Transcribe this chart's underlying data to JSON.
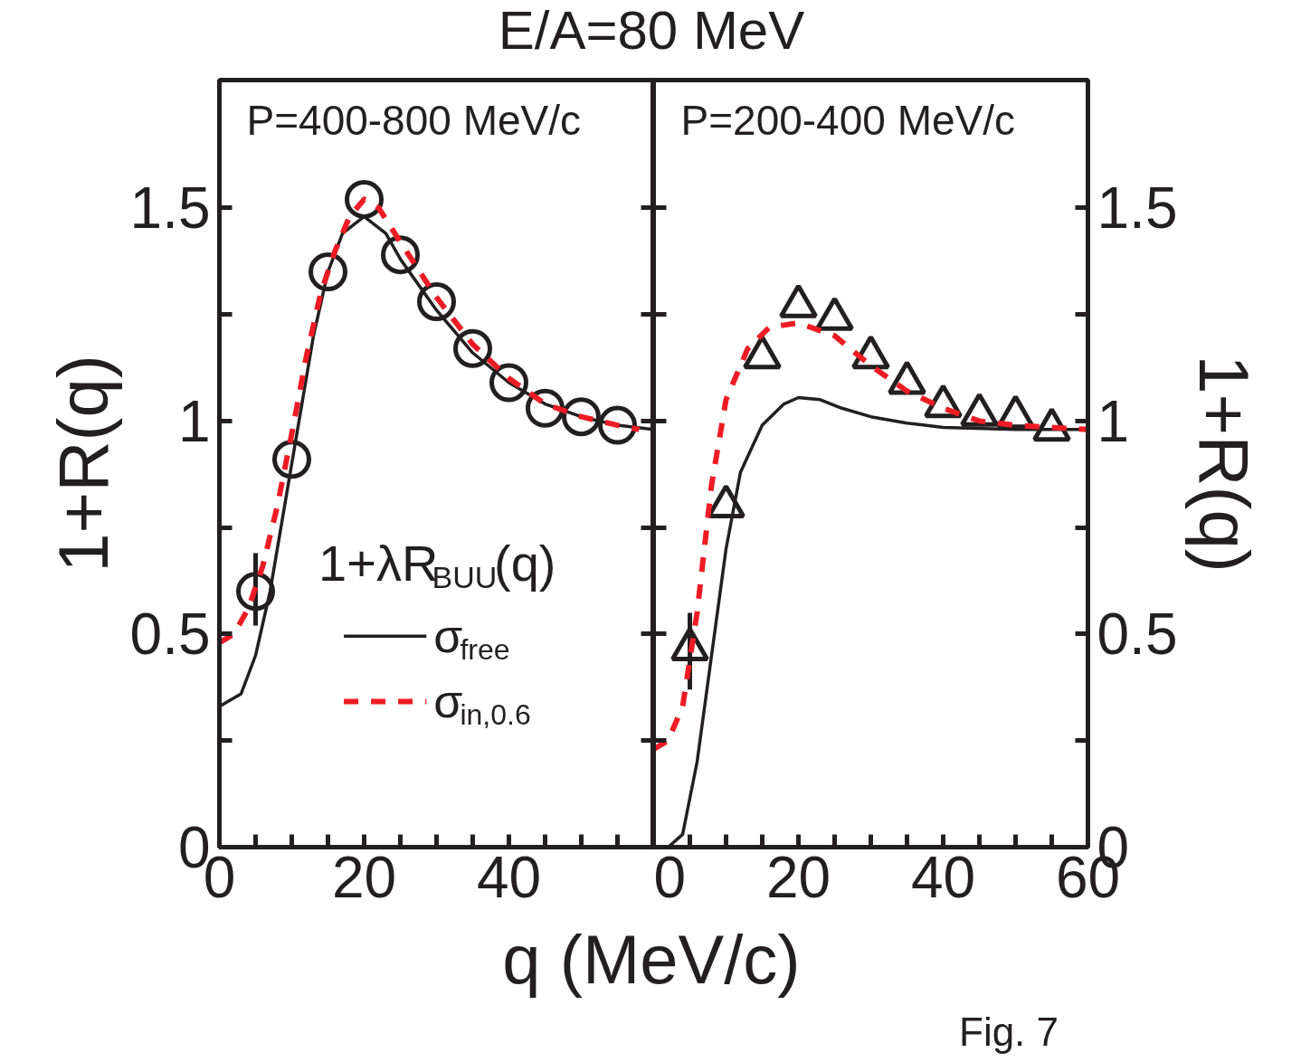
{
  "chart_data": [
    {
      "type": "line",
      "title": "E/A=80 MeV",
      "xlabel": "q (MeV/c)",
      "ylabel": "1+R(q)",
      "annotations": [
        "P=400-800 MeV/c"
      ],
      "xlim": [
        0,
        60
      ],
      "ylim": [
        0,
        1.8
      ],
      "xticks": [
        0,
        {
          "value": 5,
          "label": null
        },
        {
          "value": 10,
          "label": null
        },
        {
          "value": 15,
          "label": null
        },
        20,
        {
          "value": 25,
          "label": null
        },
        {
          "value": 30,
          "label": null
        },
        {
          "value": 35,
          "label": null
        },
        40,
        {
          "value": 45,
          "label": null
        },
        {
          "value": 50,
          "label": null
        },
        {
          "value": 55,
          "label": null
        },
        {
          "value": 60,
          "label": null
        }
      ],
      "yticks": [
        0,
        {
          "value": 0.25,
          "label": null
        },
        0.5,
        {
          "value": 0.75,
          "label": null
        },
        1,
        {
          "value": 1.25,
          "label": null
        },
        1.5
      ],
      "grid": false,
      "legend": "bottom right",
      "legend_title": "1+λR$_{BUU}$(q)",
      "series": [
        {
          "type": "scatter",
          "marker": "circle",
          "color": "#231f20",
          "x": [
            5,
            10,
            15,
            20,
            25,
            30,
            35,
            40,
            45,
            50,
            55
          ],
          "values": [
            0.6,
            0.91,
            1.35,
            1.52,
            1.39,
            1.28,
            1.17,
            1.09,
            1.03,
            1.01,
            0.99
          ],
          "errors": [
            [
              0.52,
              0.69
            ],
            null,
            null,
            null,
            null,
            null,
            null,
            null,
            null,
            null,
            null
          ]
        },
        {
          "type": "line",
          "name": "σ$_{free}$",
          "color": "#231f20",
          "line_style": "solid",
          "x": [
            0,
            3,
            5,
            7,
            10,
            13,
            15,
            17,
            20,
            23,
            25,
            30,
            35,
            40,
            45,
            50,
            55,
            60
          ],
          "values": [
            0.33,
            0.36,
            0.45,
            0.6,
            0.9,
            1.2,
            1.35,
            1.44,
            1.48,
            1.44,
            1.38,
            1.26,
            1.16,
            1.09,
            1.04,
            1.01,
            0.99,
            0.98
          ]
        },
        {
          "type": "line",
          "name": "σ$_{in,0.6}$",
          "color": "#ed1c24",
          "line_style": "dashed",
          "x": [
            0,
            2,
            4,
            6,
            8,
            10,
            12,
            14,
            16,
            18,
            20,
            22,
            25,
            30,
            35,
            40,
            45,
            50,
            55,
            58
          ],
          "values": [
            0.48,
            0.5,
            0.56,
            0.66,
            0.8,
            0.97,
            1.15,
            1.3,
            1.4,
            1.48,
            1.52,
            1.5,
            1.42,
            1.29,
            1.18,
            1.1,
            1.04,
            1.01,
            0.99,
            0.98
          ]
        }
      ]
    },
    {
      "type": "line",
      "y2label": "1+R(q)",
      "annotations": [
        "P=200-400 MeV/c",
        "Fig. 7"
      ],
      "xlim": [
        0,
        60
      ],
      "y2lim": [
        0,
        1.8
      ],
      "xticks": [
        0,
        {
          "value": 5,
          "label": null
        },
        {
          "value": 10,
          "label": null
        },
        {
          "value": 15,
          "label": null
        },
        20,
        {
          "value": 25,
          "label": null
        },
        {
          "value": 30,
          "label": null
        },
        {
          "value": 35,
          "label": null
        },
        40,
        {
          "value": 45,
          "label": null
        },
        {
          "value": 50,
          "label": null
        },
        {
          "value": 55,
          "label": null
        },
        60
      ],
      "y2ticks": [
        0,
        {
          "value": 0.25,
          "label": null
        },
        0.5,
        {
          "value": 0.75,
          "label": null
        },
        1,
        {
          "value": 1.25,
          "label": null
        },
        1.5
      ],
      "grid": false,
      "series": [
        {
          "type": "scatter",
          "marker": "triangle",
          "axis": "y2",
          "color": "#231f20",
          "x": [
            5,
            10,
            15,
            20,
            25,
            30,
            35,
            40,
            45,
            50,
            55
          ],
          "values": [
            0.465,
            0.8,
            1.15,
            1.27,
            1.24,
            1.15,
            1.09,
            1.035,
            1.015,
            1.01,
            0.98
          ],
          "errors": [
            [
              0.37,
              0.55
            ],
            null,
            null,
            null,
            null,
            null,
            null,
            null,
            null,
            null,
            null
          ]
        },
        {
          "type": "line",
          "axis": "y2",
          "color": "#231f20",
          "line_style": "solid",
          "x": [
            2,
            4,
            6,
            8,
            10,
            12,
            15,
            18,
            20,
            23,
            26,
            30,
            35,
            40,
            50,
            60
          ],
          "values": [
            0.0,
            0.03,
            0.2,
            0.45,
            0.7,
            0.88,
            0.99,
            1.04,
            1.055,
            1.05,
            1.03,
            1.01,
            0.995,
            0.985,
            0.98,
            0.98
          ]
        },
        {
          "type": "line",
          "axis": "y2",
          "color": "#ed1c24",
          "line_style": "dashed",
          "x": [
            0,
            2,
            4,
            6,
            8,
            10,
            13,
            16,
            20,
            25,
            30,
            35,
            40,
            45,
            50,
            60
          ],
          "values": [
            0.23,
            0.25,
            0.33,
            0.55,
            0.85,
            1.05,
            1.17,
            1.22,
            1.23,
            1.2,
            1.13,
            1.07,
            1.03,
            1.0,
            0.99,
            0.98
          ]
        }
      ]
    }
  ]
}
